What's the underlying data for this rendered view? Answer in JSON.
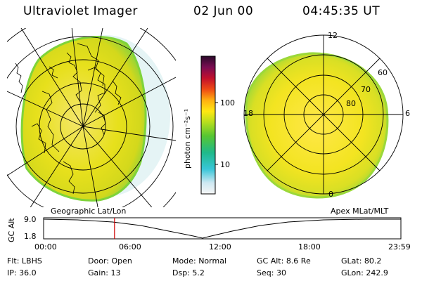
{
  "header": {
    "title": "Ultraviolet Imager",
    "date": "02 Jun 00",
    "time": "04:45:35 UT"
  },
  "colorbar": {
    "unit_label": "photon cm⁻²s⁻¹",
    "ticks": [
      "100",
      "10"
    ]
  },
  "left_panel": {
    "label": "Geographic Lat/Lon"
  },
  "right_panel": {
    "label": "Apex MLat/MLT",
    "mlt_labels": {
      "top": "12",
      "left": "18",
      "right": "6",
      "bottom": "0"
    },
    "lat_labels": [
      "60",
      "70",
      "80"
    ]
  },
  "altitude_plot": {
    "ylabel": "GC Alt",
    "y_ticks": [
      "9.0",
      "1.8"
    ],
    "x_ticks": [
      "00:00",
      "06:00",
      "12:00",
      "18:00",
      "23:59"
    ],
    "marker_time_hours": 4.76
  },
  "info": {
    "filter_label": "Flt:",
    "filter": "LBHS",
    "door_label": "Door:",
    "door": "Open",
    "mode_label": "Mode:",
    "mode": "Normal",
    "gc_alt_label": "GC Alt:",
    "gc_alt": "8.6 Re",
    "glat_label": "GLat:",
    "glat": "80.2",
    "ip_label": "IP:",
    "ip": "36.0",
    "gain_label": "Gain:",
    "gain": "13",
    "dsp_label": "Dsp:",
    "dsp": "5.2",
    "seq_label": "Seq:",
    "seq": "30",
    "glon_label": "GLon:",
    "glon": "242.9"
  },
  "colors": {
    "map_fill": "#e7e01c",
    "map_edge": "#7fd33a",
    "marker": "#cc0000"
  }
}
